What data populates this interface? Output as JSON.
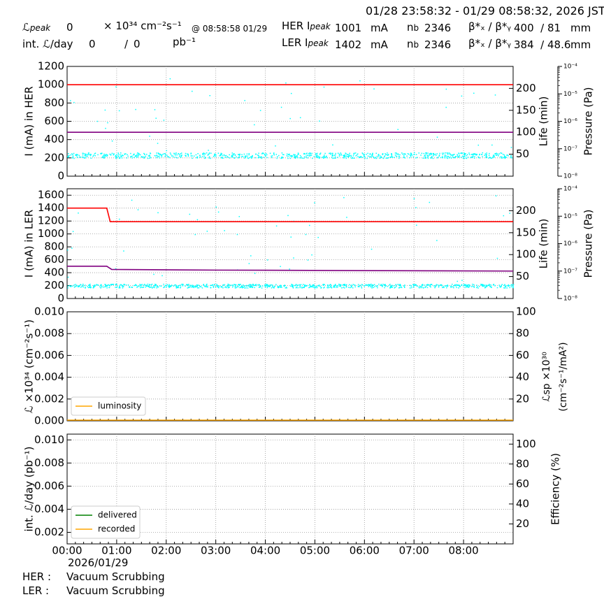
{
  "header": {
    "time_range": "01/28 23:58:32 - 01/29 08:58:32, 2026 JST",
    "lpeak_label": "ℒ",
    "lpeak_sub": "peak",
    "lpeak_value": "0",
    "lpeak_unit": "× 10³⁴ cm⁻²s⁻¹",
    "lpeak_at": "@ 08:58:58 01/29",
    "intl_label": "int. ℒ/day",
    "intl_value": "0",
    "intl_sep": "/",
    "intl_value2": "0",
    "intl_unit": "pb⁻¹",
    "her_label": "HER I",
    "her_sub": "peak",
    "her_value": "1001",
    "her_unit": "mA",
    "ler_label": "LER I",
    "ler_sub": "peak",
    "ler_value": "1402",
    "ler_unit": "mA",
    "nb_label": "n",
    "nb_sub": "b",
    "her_nb": "2346",
    "ler_nb": "2346",
    "beta_label": "β*ₓ / β*ᵧ",
    "her_beta": "400  / 81",
    "ler_beta": "384  / 48.6",
    "beta_unit": "mm"
  },
  "footer": {
    "date": "2026/01/29",
    "her_label": "HER :",
    "her_status": "Vacuum Scrubbing",
    "ler_label": "LER :",
    "ler_status": "Vacuum Scrubbing"
  },
  "chart_data": [
    {
      "type": "line",
      "name": "her-panel",
      "ylabel": "I (mA) in HER",
      "ylabel2": "Life (min)",
      "ylabel3": "Pressure (Pa)",
      "ylim": [
        0,
        1200
      ],
      "yticks": [
        0,
        200,
        400,
        600,
        800,
        1000,
        1200
      ],
      "ylim2": [
        0,
        250
      ],
      "yticks2": [
        50,
        100,
        150,
        200
      ],
      "ylim3_log": [
        -8,
        -4
      ],
      "yticks3": [
        "10⁻⁸",
        "10⁻⁷",
        "10⁻⁶",
        "10⁻⁵",
        "10⁻⁴"
      ],
      "series": [
        {
          "role": "current",
          "color": "#ff0000",
          "x": [
            0,
            9
          ],
          "values": [
            1000,
            1000
          ]
        },
        {
          "role": "life",
          "color": "#800080",
          "x": [
            0,
            9
          ],
          "values": [
            100,
            100
          ]
        },
        {
          "role": "pressure",
          "color": "#00ffff",
          "baseline": 230,
          "spread": 60,
          "outlier_max": 1100
        }
      ]
    },
    {
      "type": "line",
      "name": "ler-panel",
      "ylabel": "I (mA) in LER",
      "ylabel2": "Life (min)",
      "ylabel3": "Pressure (Pa)",
      "ylim": [
        0,
        1700
      ],
      "yticks": [
        0,
        200,
        400,
        600,
        800,
        1000,
        1200,
        1400,
        1600
      ],
      "ylim2": [
        0,
        250
      ],
      "yticks2": [
        50,
        100,
        150,
        200
      ],
      "ylim3_log": [
        -8,
        -4
      ],
      "yticks3": [
        "10⁻⁸",
        "10⁻⁷",
        "10⁻⁶",
        "10⁻⁵",
        "10⁻⁴"
      ],
      "series": [
        {
          "role": "current",
          "color": "#ff0000",
          "x": [
            0,
            0.8,
            0.87,
            9
          ],
          "values": [
            1400,
            1400,
            1190,
            1190
          ]
        },
        {
          "role": "life",
          "color": "#800080",
          "x": [
            0,
            0.8,
            0.9,
            3,
            9
          ],
          "values": [
            500,
            500,
            450,
            440,
            425
          ]
        },
        {
          "role": "pressure",
          "color": "#00ffff",
          "baseline": 200,
          "spread": 60,
          "outlier_max": 1600
        }
      ]
    },
    {
      "type": "line",
      "name": "lumi-panel",
      "ylabel": "ℒ ×10³⁴ (cm⁻²s⁻¹)",
      "ylabel2a": "ℒsp ×10³⁰",
      "ylabel2b": "(cm⁻²s⁻¹/mA²)",
      "ylim": [
        0,
        0.01
      ],
      "yticks": [
        "0.000",
        "0.002",
        "0.004",
        "0.006",
        "0.008",
        "0.010"
      ],
      "yticks2": [
        20,
        40,
        60,
        80,
        100
      ],
      "legend": [
        "luminosity"
      ],
      "series": [
        {
          "name": "luminosity",
          "color": "#ffa500",
          "x": [
            0,
            9
          ],
          "values": [
            0,
            0
          ]
        }
      ]
    },
    {
      "type": "line",
      "name": "intlumi-panel",
      "ylabel": "int. ℒ/day (pb⁻¹)",
      "ylabel2": "Efficiency (%)",
      "yticks": [
        "0.002",
        "0.004",
        "0.006",
        "0.008",
        "0.010"
      ],
      "yticks2": [
        20,
        40,
        60,
        80,
        100
      ],
      "legend": [
        "delivered",
        "recorded"
      ],
      "series": [
        {
          "name": "delivered",
          "color": "#008000"
        },
        {
          "name": "recorded",
          "color": "#ffa500"
        }
      ]
    }
  ],
  "xaxis": {
    "ticks": [
      "00:00",
      "01:00",
      "02:00",
      "03:00",
      "04:00",
      "05:00",
      "06:00",
      "07:00",
      "08:00"
    ]
  }
}
